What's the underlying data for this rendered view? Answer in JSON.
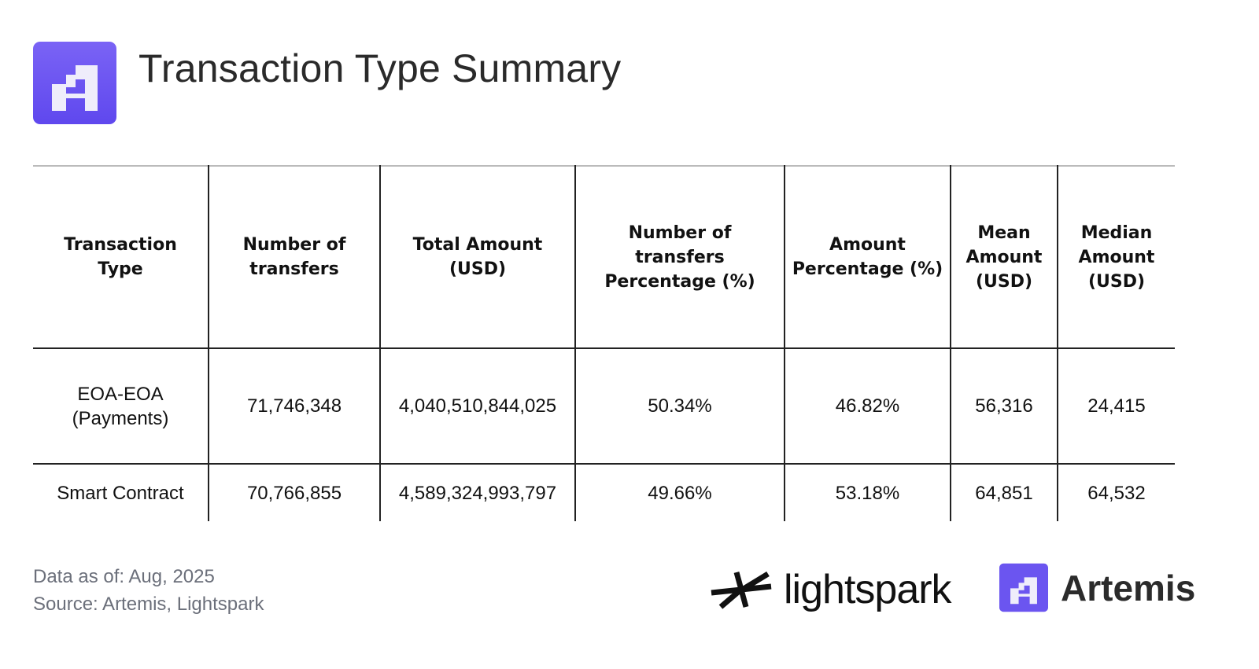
{
  "header": {
    "title": "Transaction Type Summary",
    "logo": "artemis-logo"
  },
  "colors": {
    "brand": "#6b55f0",
    "text": "#111111",
    "muted": "#6b6f7a"
  },
  "chart_data": {
    "type": "table",
    "columns": [
      "Transaction Type",
      "Number of transfers",
      "Total Amount (USD)",
      "Number of transfers Percentage (%)",
      "Amount Percentage (%)",
      "Mean Amount (USD)",
      "Median Amount (USD)"
    ],
    "rows": [
      [
        "EOA-EOA (Payments)",
        "71,746,348",
        "4,040,510,844,025",
        "50.34%",
        "46.82%",
        "56,316",
        "24,415"
      ],
      [
        "Smart Contract",
        "70,766,855",
        "4,589,324,993,797",
        "49.66%",
        "53.18%",
        "64,851",
        "64,532"
      ]
    ]
  },
  "footer": {
    "date": "Data as of: Aug, 2025",
    "source": "Source: Artemis, Lightspark",
    "lightspark": "lightspark",
    "artemis": "Artemis"
  }
}
